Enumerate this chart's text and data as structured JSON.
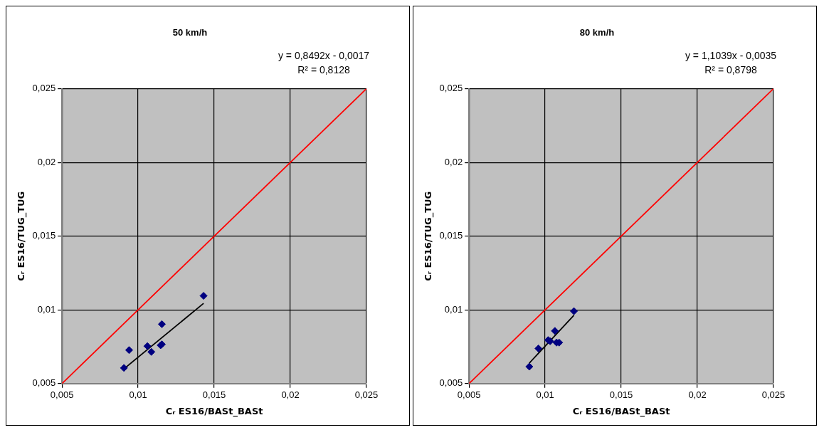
{
  "chart_data": [
    {
      "type": "scatter",
      "title": "50 km/h",
      "xlabel": "Cᵣ ES16/BASt_BASt",
      "ylabel": "Cᵣ ES16/TUG_TUG",
      "annotations": [
        "y = 0,8492x - 0,0017",
        "R² = 0,8128"
      ],
      "grid": true,
      "legend": false,
      "xlim": [
        0.005,
        0.025
      ],
      "ylim": [
        0.005,
        0.025
      ],
      "xticks": [
        {
          "value": 0.005,
          "label": "0,005"
        },
        {
          "value": 0.01,
          "label": "0,01"
        },
        {
          "value": 0.015,
          "label": "0,015"
        },
        {
          "value": 0.02,
          "label": "0,02"
        },
        {
          "value": 0.025,
          "label": "0,025"
        }
      ],
      "yticks": [
        {
          "value": 0.005,
          "label": "0,005"
        },
        {
          "value": 0.01,
          "label": "0,01"
        },
        {
          "value": 0.015,
          "label": "0,015"
        },
        {
          "value": 0.02,
          "label": "0,02"
        },
        {
          "value": 0.025,
          "label": "0,025"
        }
      ],
      "series": [
        {
          "type": "line",
          "color": "#ff0000",
          "x": [
            0.005,
            0.025
          ],
          "values": [
            0.005,
            0.025
          ]
        },
        {
          "marker": "diamond",
          "color": "#000080",
          "x": [
            0.00907,
            0.00941,
            0.01061,
            0.01087,
            0.01156,
            0.01148,
            0.01156,
            0.0143
          ],
          "values": [
            0.00606,
            0.00727,
            0.00754,
            0.00715,
            0.00903,
            0.0076,
            0.00766,
            0.01095
          ]
        },
        {
          "type": "line",
          "color": "#000000",
          "x": [
            0.00907,
            0.0143
          ],
          "values": [
            0.006,
            0.01044
          ]
        }
      ]
    },
    {
      "type": "scatter",
      "title": "80 km/h",
      "xlabel": "Cᵣ ES16/BASt_BASt",
      "ylabel": "Cᵣ ES16/TUG_TUG",
      "annotations": [
        "y = 1,1039x - 0,0035",
        "R² = 0,8798"
      ],
      "grid": true,
      "legend": false,
      "xlim": [
        0.005,
        0.025
      ],
      "ylim": [
        0.005,
        0.025
      ],
      "xticks": [
        {
          "value": 0.005,
          "label": "0,005"
        },
        {
          "value": 0.01,
          "label": "0,01"
        },
        {
          "value": 0.015,
          "label": "0,015"
        },
        {
          "value": 0.02,
          "label": "0,02"
        },
        {
          "value": 0.025,
          "label": "0,025"
        }
      ],
      "yticks": [
        {
          "value": 0.005,
          "label": "0,005"
        },
        {
          "value": 0.01,
          "label": "0,01"
        },
        {
          "value": 0.015,
          "label": "0,015"
        },
        {
          "value": 0.02,
          "label": "0,02"
        },
        {
          "value": 0.025,
          "label": "0,025"
        }
      ],
      "series": [
        {
          "type": "line",
          "color": "#ff0000",
          "x": [
            0.005,
            0.025
          ],
          "values": [
            0.005,
            0.025
          ]
        },
        {
          "marker": "diamond",
          "color": "#000080",
          "x": [
            0.00896,
            0.00956,
            0.0102,
            0.01033,
            0.01064,
            0.01075,
            0.01092,
            0.01189
          ],
          "values": [
            0.00615,
            0.00738,
            0.00795,
            0.00787,
            0.00857,
            0.00778,
            0.00778,
            0.00991
          ]
        },
        {
          "type": "line",
          "color": "#000000",
          "x": [
            0.00896,
            0.01189
          ],
          "values": [
            0.00639,
            0.00963
          ]
        }
      ]
    }
  ]
}
